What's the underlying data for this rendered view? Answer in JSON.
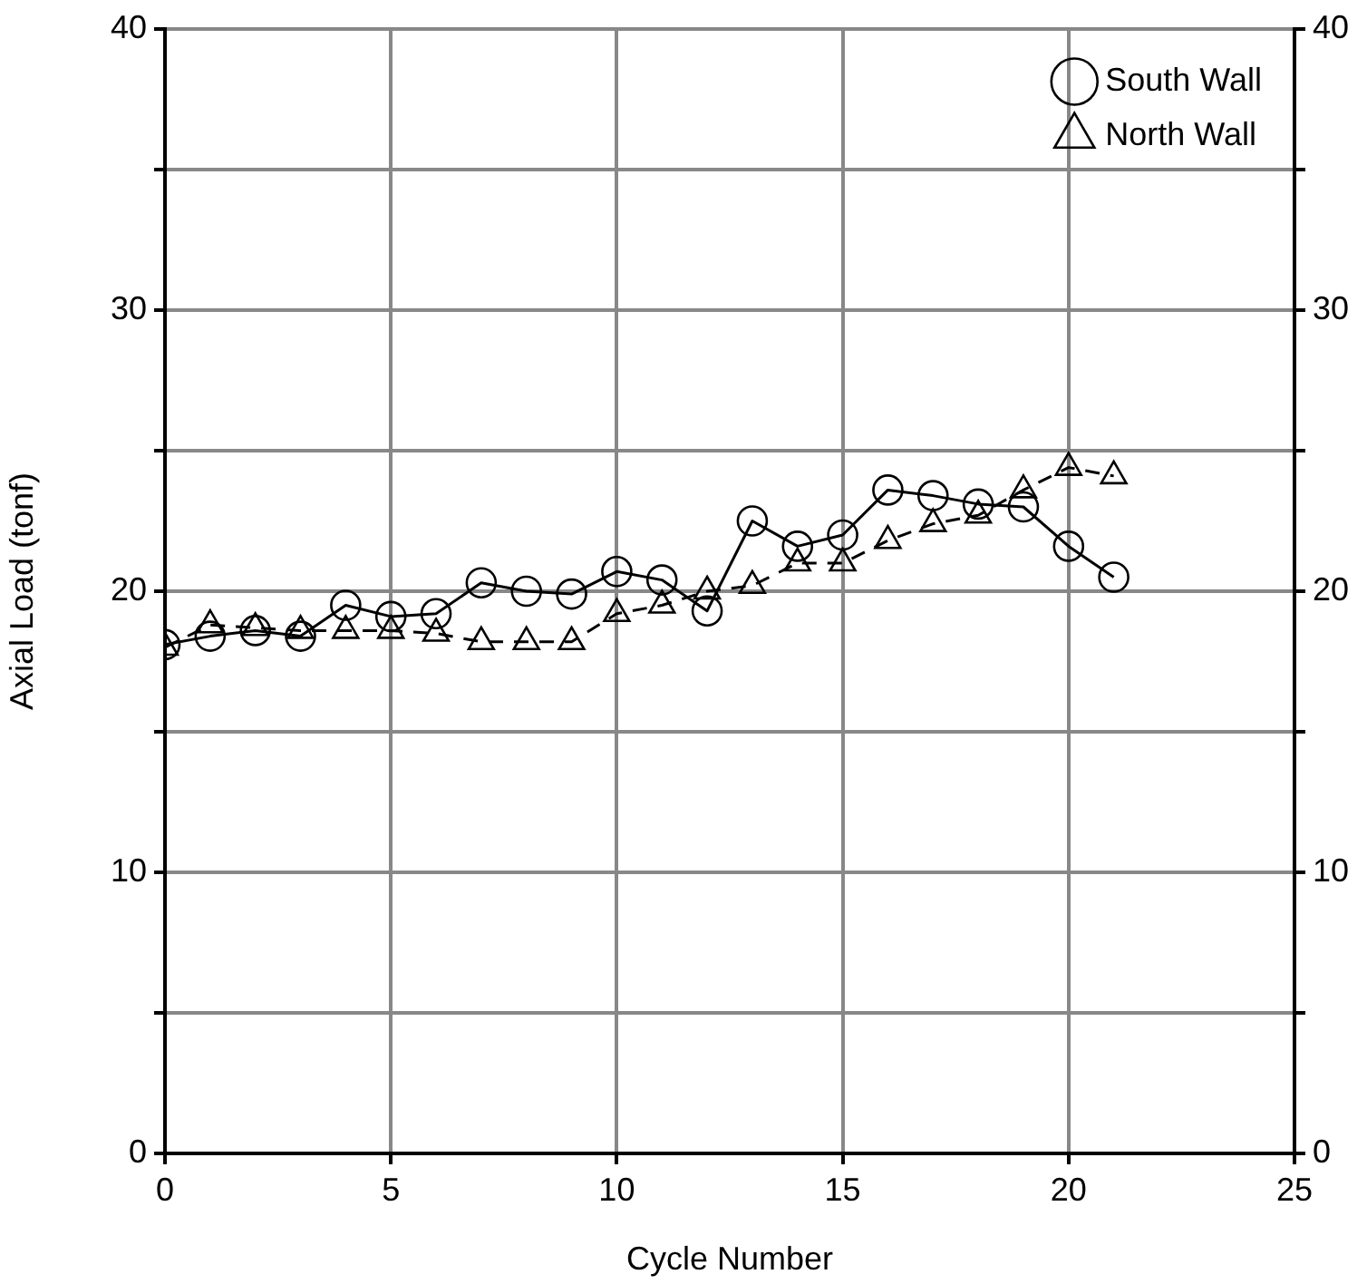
{
  "chart_data": {
    "type": "line",
    "xlabel": "Cycle Number",
    "ylabel": "Axial Load (tonf)",
    "x": [
      0,
      1,
      2,
      3,
      4,
      5,
      6,
      7,
      8,
      9,
      10,
      11,
      12,
      13,
      14,
      15,
      16,
      17,
      18,
      19,
      20,
      21
    ],
    "series": [
      {
        "name": "South Wall",
        "color": "#000000",
        "marker": "circle",
        "line_style": "solid",
        "values": [
          18.1,
          18.4,
          18.6,
          18.4,
          19.5,
          19.1,
          19.2,
          20.3,
          20.0,
          19.9,
          20.7,
          20.4,
          19.3,
          22.5,
          21.6,
          22.0,
          23.6,
          23.4,
          23.1,
          23.0,
          21.6,
          20.5
        ]
      },
      {
        "name": "North Wall",
        "color": "#000000",
        "marker": "triangle",
        "line_style": "dashed",
        "values": [
          18.0,
          18.8,
          18.7,
          18.6,
          18.6,
          18.6,
          18.5,
          18.2,
          18.2,
          18.2,
          19.2,
          19.5,
          20.0,
          20.2,
          21.0,
          21.0,
          21.8,
          22.4,
          22.7,
          23.6,
          24.4,
          24.1
        ]
      }
    ],
    "xlim": [
      0,
      25
    ],
    "xticks": [
      0,
      5,
      10,
      15,
      20,
      25
    ],
    "ylim": [
      0,
      40
    ],
    "yticks": [
      0,
      {
        "value": 5,
        "label": null
      },
      10,
      {
        "value": 15,
        "label": null
      },
      20,
      {
        "value": 25,
        "label": null
      },
      30,
      {
        "value": 35,
        "label": null
      },
      40
    ],
    "y2lim": [
      0,
      40
    ],
    "y2ticks": [
      0,
      {
        "value": 5,
        "label": null
      },
      10,
      {
        "value": 15,
        "label": null
      },
      20,
      {
        "value": 25,
        "label": null
      },
      30,
      {
        "value": 35,
        "label": null
      },
      40
    ],
    "grid": true,
    "legend": "top right"
  }
}
